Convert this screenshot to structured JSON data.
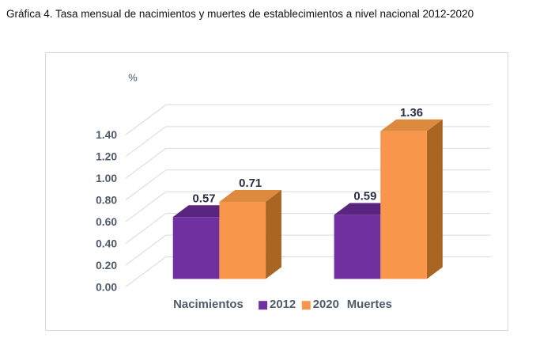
{
  "chart_data": {
    "type": "bar",
    "style": "3d-clustered-column",
    "title": "Gráfica 4. Tasa mensual de nacimientos y muertes de establecimientos a nivel nacional 2012-2020",
    "unit_label": "%",
    "categories": [
      "Nacimientos",
      "Muertes"
    ],
    "series": [
      {
        "name": "2012",
        "values": [
          0.57,
          0.59
        ],
        "color": "#7030A0",
        "top_color": "#5A2580",
        "side_color": "#4A1A66"
      },
      {
        "name": "2020",
        "values": [
          0.71,
          1.36
        ],
        "color": "#F8964B",
        "top_color": "#DD8A3F",
        "side_color": "#A96522"
      }
    ],
    "data_labels": [
      [
        "0.57",
        "0.59"
      ],
      [
        "0.71",
        "1.36"
      ]
    ],
    "ylim": [
      0.0,
      1.4
    ],
    "ytick_step": 0.2,
    "ytick_labels": [
      "0.00",
      "0.20",
      "0.40",
      "0.60",
      "0.80",
      "1.00",
      "1.20",
      "1.40"
    ],
    "grid": true,
    "legend_position": "bottom-center",
    "colors": {
      "gridline": "#D9D9D9",
      "axis_text": "#4F5A6B",
      "data_label_text": "#273142",
      "unit_label_text": "#44546A",
      "panel_border": "#D9D9D9"
    }
  }
}
